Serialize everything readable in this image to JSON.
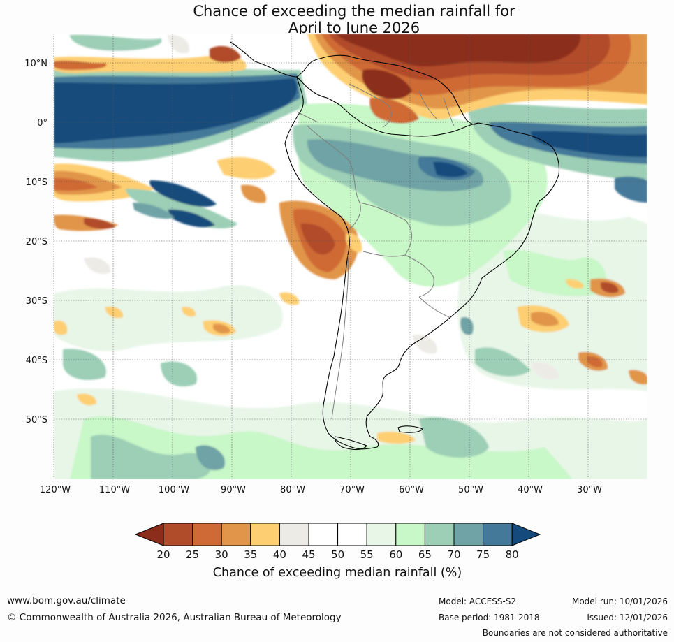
{
  "title": {
    "line1": "Chance of exceeding the median rainfall for",
    "line2": "April to June 2026"
  },
  "map": {
    "lat_labels": [
      "10°N",
      "0°",
      "10°S",
      "20°S",
      "30°S",
      "40°S",
      "50°S"
    ],
    "lon_labels": [
      "120°W",
      "110°W",
      "100°W",
      "90°W",
      "80°W",
      "70°W",
      "60°W",
      "50°W",
      "40°W",
      "30°W"
    ],
    "region": "South America",
    "colors": {
      "p20": "#8c2d1c",
      "p25": "#b14c2a",
      "p30": "#cf6a36",
      "p35": "#e1954a",
      "p40": "#fdcf72",
      "p45": "#edebe6",
      "p50": "#ffffff",
      "p55": "#ffffff",
      "p60": "#e8f6e8",
      "p65": "#c8f7c8",
      "p70": "#9ccfb6",
      "p75": "#6fa3a5",
      "p80": "#447999",
      "p85": "#144b7c"
    }
  },
  "colorbar": {
    "ticks": [
      "20",
      "25",
      "30",
      "35",
      "40",
      "45",
      "50",
      "55",
      "60",
      "65",
      "70",
      "75",
      "80"
    ],
    "label": "Chance of exceeding median rainfall (%)"
  },
  "footer": {
    "website": "www.bom.gov.au/climate",
    "copyright": "© Commonwealth of Australia 2026, Australian Bureau of Meteorology",
    "model": "Model: ACCESS-S2",
    "base_period": "Base period: 1981-2018",
    "model_run": "Model run: 10/01/2026",
    "issued": "Issued: 12/01/2026",
    "disclaimer": "Boundaries are not considered authoritative"
  }
}
